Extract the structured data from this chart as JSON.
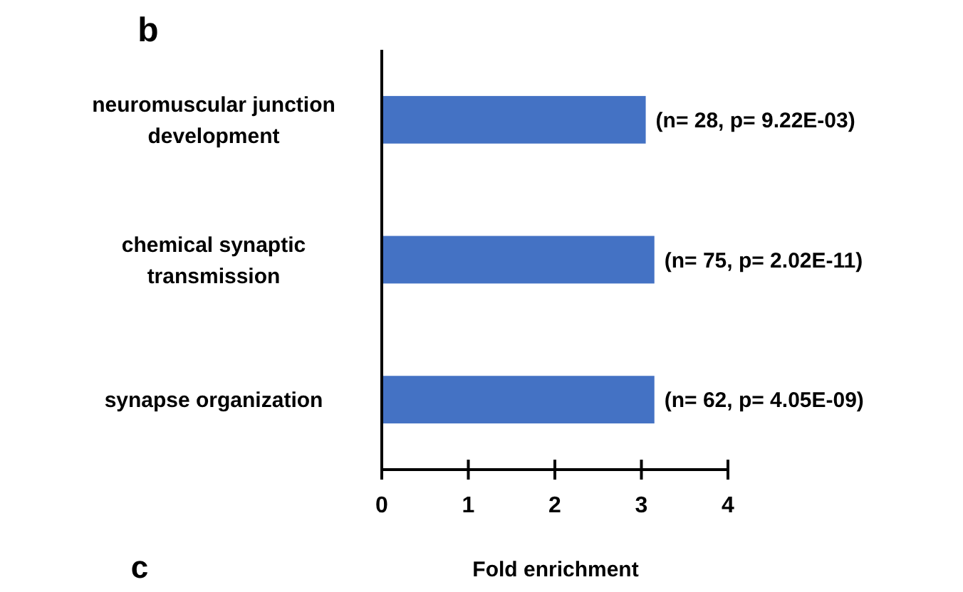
{
  "chart_data": {
    "type": "bar",
    "orientation": "horizontal",
    "title": "b",
    "xlabel": "Fold enrichment",
    "categories": [
      "neuromuscular junction development",
      "chemical synaptic transmission",
      "synapse organization"
    ],
    "values": [
      3.05,
      3.15,
      3.15
    ],
    "color": "#4472c4",
    "value_labels": [
      "(n= 28, p= 9.22E-03)",
      "(n= 75, p= 2.02E-11)",
      "(n= 62, p= 4.05E-09)"
    ],
    "xlim": [
      0,
      4
    ],
    "xticks": [
      0,
      1,
      2,
      3,
      4
    ],
    "grid": false,
    "annotations": [
      "c"
    ]
  }
}
